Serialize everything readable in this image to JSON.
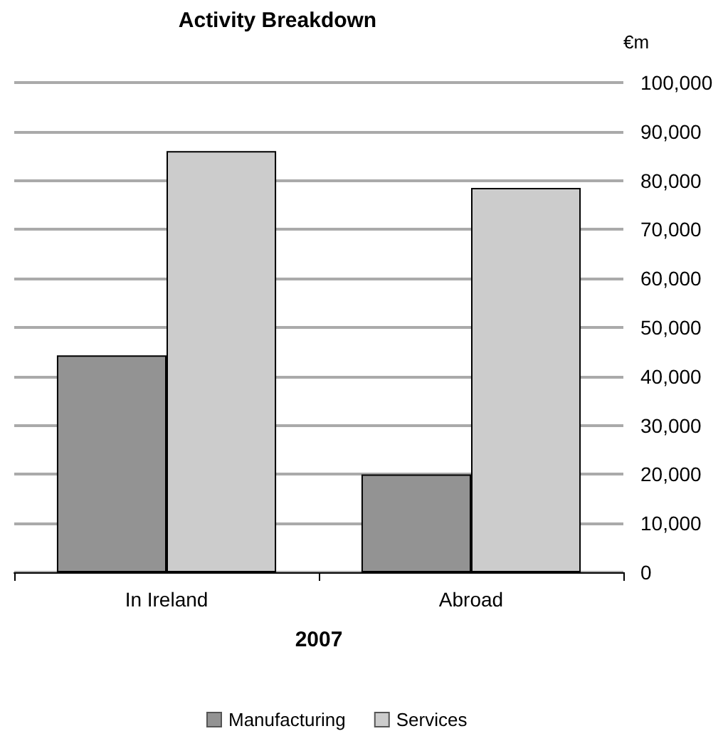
{
  "chart_data": {
    "type": "bar",
    "title": "Activity Breakdown",
    "ylabel": "€m",
    "xlabel": "2007",
    "categories": [
      "In Ireland",
      "Abroad"
    ],
    "series": [
      {
        "name": "Manufacturing",
        "color": "#939393",
        "values": [
          44300,
          20000
        ]
      },
      {
        "name": "Services",
        "color": "#cccccc",
        "values": [
          86000,
          78500
        ]
      }
    ],
    "ylim": [
      0,
      100000
    ],
    "yticks": [
      0,
      {
        "value": 10000,
        "label": "10,000"
      },
      {
        "value": 20000,
        "label": "20,000"
      },
      {
        "value": 30000,
        "label": "30,000"
      },
      {
        "value": 40000,
        "label": "40,000"
      },
      {
        "value": 50000,
        "label": "50,000"
      },
      {
        "value": 60000,
        "label": "60,000"
      },
      {
        "value": 70000,
        "label": "70,000"
      },
      {
        "value": 80000,
        "label": "80,000"
      },
      {
        "value": 90000,
        "label": "90,000"
      },
      {
        "value": 100000,
        "label": "100,000"
      }
    ],
    "grid": "y",
    "legend": "bottom"
  }
}
